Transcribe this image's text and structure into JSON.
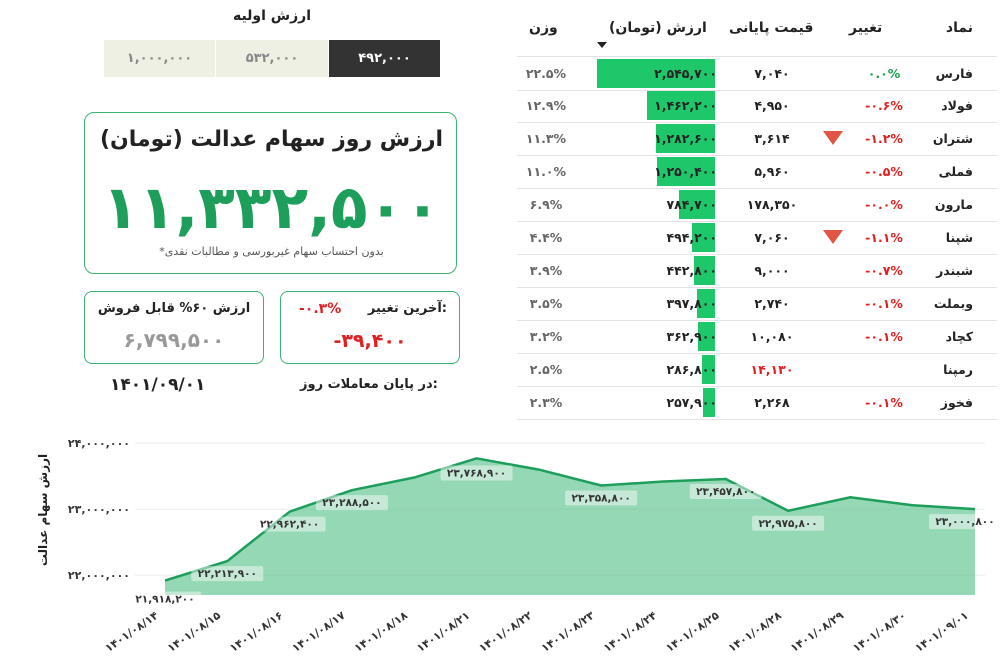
{
  "initial_value": {
    "title": "ارزش اولیه",
    "options": [
      {
        "label": "۱,۰۰۰,۰۰۰",
        "selected": false
      },
      {
        "label": "۵۳۲,۰۰۰",
        "selected": false
      },
      {
        "label": "۴۹۲,۰۰۰",
        "selected": true
      }
    ]
  },
  "main_card": {
    "title": "ارزش روز سهام عدالت (تومان)",
    "value": "۱۱,۳۳۲,۵۰۰",
    "note": "*بدون احتساب سهام غیربورسی و مطالبات نقدی"
  },
  "sellable": {
    "title": "ارزش ۶۰% قابل فروش",
    "value": "۶,۷۹۹,۵۰۰"
  },
  "last_change": {
    "label": "آخرین تغییر:",
    "percent": "-۰.۳%",
    "value": "-۳۹,۴۰۰"
  },
  "end_of_day": {
    "label": "در پایان معاملات روز:",
    "date": "۱۴۰۱/۰۹/۰۱"
  },
  "colors": {
    "accent": "#1e9e5b",
    "bar": "#1ec76a",
    "negative": "#e02020",
    "positive": "#1aa34a",
    "selected_bg": "#333333",
    "option_bg": "#eef0e4"
  },
  "table": {
    "headers": {
      "symbol": "نماد",
      "change": "تغییر",
      "price": "قیمت پایانی",
      "value": "ارزش (تومان)",
      "weight": "وزن"
    },
    "rows": [
      {
        "symbol": "فارس",
        "change": "۰.۰%",
        "chg_class": "green",
        "alert": false,
        "price": "۷,۰۴۰",
        "price_red": false,
        "value": "۲,۵۴۵,۷۰۰",
        "weight": "۲۲.۵%",
        "bar": 2545700
      },
      {
        "symbol": "فولاد",
        "change": "-۰.۶%",
        "chg_class": "red",
        "alert": false,
        "price": "۴,۹۵۰",
        "price_red": false,
        "value": "۱,۴۶۲,۲۰۰",
        "weight": "۱۲.۹%",
        "bar": 1462200
      },
      {
        "symbol": "شتران",
        "change": "-۱.۲%",
        "chg_class": "red",
        "alert": true,
        "price": "۳,۶۱۴",
        "price_red": false,
        "value": "۱,۲۸۲,۶۰۰",
        "weight": "۱۱.۳%",
        "bar": 1282600
      },
      {
        "symbol": "فملی",
        "change": "-۰.۵%",
        "chg_class": "red",
        "alert": false,
        "price": "۵,۹۶۰",
        "price_red": false,
        "value": "۱,۲۵۰,۴۰۰",
        "weight": "۱۱.۰%",
        "bar": 1250400
      },
      {
        "symbol": "مارون",
        "change": "-۰.۰%",
        "chg_class": "red",
        "alert": false,
        "price": "۱۷۸,۳۵۰",
        "price_red": false,
        "value": "۷۸۴,۷۰۰",
        "weight": "۶.۹%",
        "bar": 784700
      },
      {
        "symbol": "شپنا",
        "change": "-۱.۱%",
        "chg_class": "red",
        "alert": true,
        "price": "۷,۰۶۰",
        "price_red": false,
        "value": "۴۹۴,۲۰۰",
        "weight": "۴.۴%",
        "bar": 494200
      },
      {
        "symbol": "شبندر",
        "change": "-۰.۷%",
        "chg_class": "red",
        "alert": false,
        "price": "۹,۰۰۰",
        "price_red": false,
        "value": "۴۴۲,۸۰۰",
        "weight": "۳.۹%",
        "bar": 442800
      },
      {
        "symbol": "وبملت",
        "change": "-۰.۱%",
        "chg_class": "red",
        "alert": false,
        "price": "۲,۷۴۰",
        "price_red": false,
        "value": "۳۹۷,۸۰۰",
        "weight": "۳.۵%",
        "bar": 397800
      },
      {
        "symbol": "کچاد",
        "change": "-۰.۱%",
        "chg_class": "red",
        "alert": false,
        "price": "۱۰,۰۸۰",
        "price_red": false,
        "value": "۳۶۲,۹۰۰",
        "weight": "۳.۲%",
        "bar": 362900
      },
      {
        "symbol": "رمپنا",
        "change": "",
        "chg_class": "red",
        "alert": false,
        "price": "۱۴,۱۳۰",
        "price_red": true,
        "value": "۲۸۶,۸۰۰",
        "weight": "۲.۵%",
        "bar": 286800
      },
      {
        "symbol": "فخوز",
        "change": "-۰.۱%",
        "chg_class": "red",
        "alert": false,
        "price": "۲,۲۶۸",
        "price_red": false,
        "value": "۲۵۷,۹۰۰",
        "weight": "۲.۳%",
        "bar": 257900
      }
    ]
  },
  "chart_data": {
    "type": "area",
    "ylabel": "ارزش سهام عدالت",
    "ylim": [
      21700000,
      24200000
    ],
    "yticks": [
      {
        "value": 22000000,
        "label": "۲۲,۰۰۰,۰۰۰"
      },
      {
        "value": 23000000,
        "label": "۲۳,۰۰۰,۰۰۰"
      },
      {
        "value": 24000000,
        "label": "۲۴,۰۰۰,۰۰۰"
      }
    ],
    "x": [
      "۱۴۰۱/۰۸/۱۴",
      "۱۴۰۱/۰۸/۱۵",
      "۱۴۰۱/۰۸/۱۶",
      "۱۴۰۱/۰۸/۱۷",
      "۱۴۰۱/۰۸/۱۸",
      "۱۴۰۱/۰۸/۲۱",
      "۱۴۰۱/۰۸/۲۲",
      "۱۴۰۱/۰۸/۲۳",
      "۱۴۰۱/۰۸/۲۴",
      "۱۴۰۱/۰۸/۲۵",
      "۱۴۰۱/۰۸/۲۸",
      "۱۴۰۱/۰۸/۲۹",
      "۱۴۰۱/۰۸/۳۰",
      "۱۴۰۱/۰۹/۰۱"
    ],
    "values": [
      21918200,
      22213900,
      22962400,
      23288500,
      23480000,
      23768900,
      23600000,
      23358800,
      23420000,
      23457800,
      22975800,
      23180000,
      23060000,
      23000800
    ],
    "labels": [
      {
        "index": 0,
        "text": "۲۱,۹۱۸,۲۰۰"
      },
      {
        "index": 1,
        "text": "۲۲,۲۱۳,۹۰۰"
      },
      {
        "index": 2,
        "text": "۲۲,۹۶۲,۴۰۰"
      },
      {
        "index": 3,
        "text": "۲۳,۲۸۸,۵۰۰"
      },
      {
        "index": 5,
        "text": "۲۳,۷۶۸,۹۰۰"
      },
      {
        "index": 7,
        "text": "۲۳,۳۵۸,۸۰۰"
      },
      {
        "index": 9,
        "text": "۲۳,۴۵۷,۸۰۰"
      },
      {
        "index": 10,
        "text": "۲۲,۹۷۵,۸۰۰"
      },
      {
        "index": 13,
        "text": "۲۳,۰۰۰,۸۰۰"
      }
    ],
    "grid": true,
    "legend": "none"
  }
}
